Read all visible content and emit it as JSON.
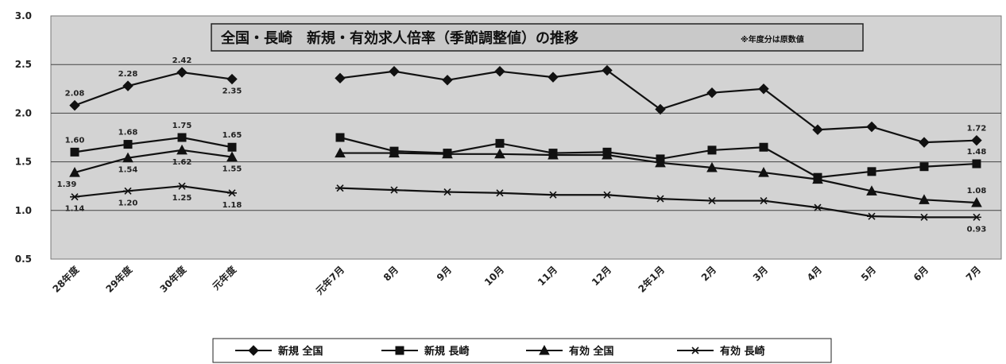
{
  "chart_data": {
    "type": "line",
    "title": "全国・長崎　新規・有効求人倍率（季節調整値）の推移",
    "note": "※年度分は原数値",
    "ylim": [
      0.5,
      3.0
    ],
    "yticks": [
      "0.5",
      "1.0",
      "1.5",
      "2.0",
      "2.5",
      "3.0"
    ],
    "categories": [
      "28年度",
      "29年度",
      "30年度",
      "元年度",
      "元年7月",
      "8月",
      "9月",
      "10月",
      "11月",
      "12月",
      "2年1月",
      "2月",
      "3月",
      "4月",
      "5月",
      "6月",
      "7月"
    ],
    "series": [
      {
        "name": "新規 全国",
        "marker": "diamond",
        "values": [
          2.08,
          2.28,
          2.42,
          2.35,
          2.36,
          2.43,
          2.34,
          2.43,
          2.37,
          2.44,
          2.04,
          2.21,
          2.25,
          1.83,
          1.86,
          1.7,
          1.72
        ]
      },
      {
        "name": "新規 長崎",
        "marker": "square",
        "values": [
          1.6,
          1.68,
          1.75,
          1.65,
          1.75,
          1.61,
          1.59,
          1.69,
          1.59,
          1.6,
          1.53,
          1.62,
          1.65,
          1.34,
          1.4,
          1.45,
          1.48
        ]
      },
      {
        "name": "有効 全国",
        "marker": "triangle",
        "values": [
          1.39,
          1.54,
          1.62,
          1.55,
          1.59,
          1.59,
          1.58,
          1.58,
          1.57,
          1.57,
          1.49,
          1.44,
          1.39,
          1.32,
          1.2,
          1.11,
          1.08
        ]
      },
      {
        "name": "有効 長崎",
        "marker": "star",
        "values": [
          1.14,
          1.2,
          1.25,
          1.18,
          1.23,
          1.21,
          1.19,
          1.18,
          1.16,
          1.16,
          1.12,
          1.1,
          1.1,
          1.03,
          0.94,
          0.93,
          0.93
        ]
      }
    ],
    "data_labels": [
      {
        "series": 0,
        "index": 0,
        "text": "2.08",
        "pos": "above"
      },
      {
        "series": 0,
        "index": 1,
        "text": "2.28",
        "pos": "above"
      },
      {
        "series": 0,
        "index": 2,
        "text": "2.42",
        "pos": "above"
      },
      {
        "series": 0,
        "index": 3,
        "text": "2.35",
        "pos": "below"
      },
      {
        "series": 0,
        "index": 16,
        "text": "1.72",
        "pos": "above"
      },
      {
        "series": 1,
        "index": 0,
        "text": "1.60",
        "pos": "above"
      },
      {
        "series": 1,
        "index": 1,
        "text": "1.68",
        "pos": "above"
      },
      {
        "series": 1,
        "index": 2,
        "text": "1.75",
        "pos": "above"
      },
      {
        "series": 1,
        "index": 3,
        "text": "1.65",
        "pos": "above"
      },
      {
        "series": 1,
        "index": 16,
        "text": "1.48",
        "pos": "above"
      },
      {
        "series": 2,
        "index": 0,
        "text": "1.39",
        "pos": "belowleft"
      },
      {
        "series": 2,
        "index": 1,
        "text": "1.54",
        "pos": "below"
      },
      {
        "series": 2,
        "index": 2,
        "text": "1.62",
        "pos": "below"
      },
      {
        "series": 2,
        "index": 3,
        "text": "1.55",
        "pos": "below"
      },
      {
        "series": 2,
        "index": 16,
        "text": "1.08",
        "pos": "above"
      },
      {
        "series": 3,
        "index": 0,
        "text": "1.14",
        "pos": "below"
      },
      {
        "series": 3,
        "index": 1,
        "text": "1.20",
        "pos": "below"
      },
      {
        "series": 3,
        "index": 2,
        "text": "1.25",
        "pos": "below"
      },
      {
        "series": 3,
        "index": 3,
        "text": "1.18",
        "pos": "below"
      },
      {
        "series": 3,
        "index": 16,
        "text": "0.93",
        "pos": "below"
      }
    ],
    "grid": true,
    "legend_position": "bottom",
    "colors": {
      "plot_background": "#d3d3d3",
      "title_background": "#c9c9c9",
      "line": "#111111"
    }
  }
}
